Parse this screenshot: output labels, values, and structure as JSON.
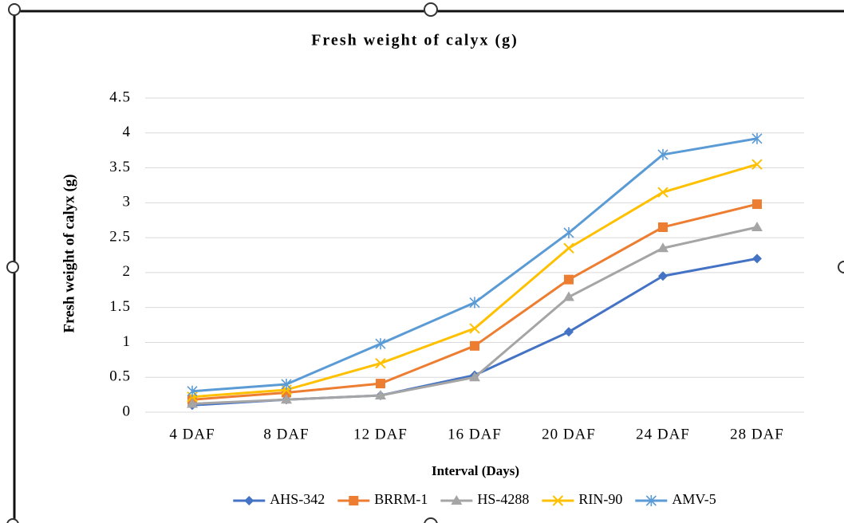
{
  "chart_data": {
    "type": "line",
    "title": "Fresh  weight of calyx  (g)",
    "y_label": "Fresh weight of calyx (g)",
    "x_label": "Interval (Days)",
    "categories": [
      "4 DAF",
      "8 DAF",
      "12 DAF",
      "16 DAF",
      "20 DAF",
      "24 DAF",
      "28 DAF"
    ],
    "series": [
      {
        "name": "AHS-342",
        "color": "#4472c4",
        "marker": "diamond",
        "values": [
          0.1,
          0.18,
          0.24,
          0.53,
          1.15,
          1.95,
          2.2
        ]
      },
      {
        "name": "BRRM-1",
        "color": "#ed7d31",
        "marker": "square",
        "values": [
          0.18,
          0.28,
          0.41,
          0.95,
          1.9,
          2.65,
          2.98
        ]
      },
      {
        "name": "HS-4288",
        "color": "#a5a5a5",
        "marker": "triangle",
        "values": [
          0.12,
          0.18,
          0.24,
          0.5,
          1.65,
          2.35,
          2.65
        ]
      },
      {
        "name": "RIN-90",
        "color": "#ffc000",
        "marker": "x",
        "values": [
          0.22,
          0.32,
          0.7,
          1.2,
          2.35,
          3.15,
          3.55
        ]
      },
      {
        "name": "AMV-5",
        "color": "#5b9bd5",
        "marker": "asterisk",
        "values": [
          0.3,
          0.4,
          0.98,
          1.57,
          2.57,
          3.69,
          3.92
        ]
      }
    ],
    "ylim": [
      0,
      4.5
    ],
    "yticks": [
      0,
      0.5,
      1,
      1.5,
      2,
      2.5,
      3,
      3.5,
      4,
      4.5
    ],
    "grid": true,
    "legend": "bottom"
  }
}
